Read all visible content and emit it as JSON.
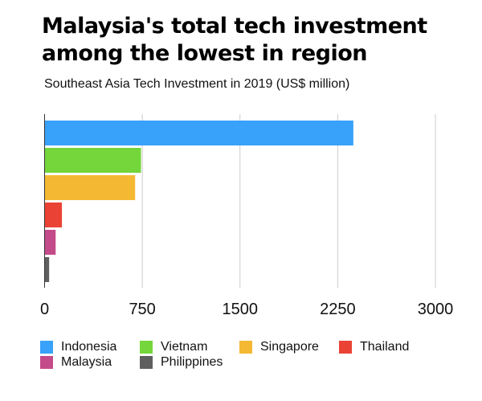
{
  "chart_data": {
    "type": "bar",
    "orientation": "horizontal",
    "title": "Malaysia's total tech investment among the lowest in region",
    "subtitle": "Southeast Asia Tech Investment in 2019 (US$ million)",
    "categories": [
      "Indonesia",
      "Vietnam",
      "Singapore",
      "Thailand",
      "Malaysia",
      "Philippines"
    ],
    "values": [
      2370,
      740,
      695,
      133,
      85,
      35
    ],
    "colors": [
      "#38a1f9",
      "#74d63a",
      "#f5b833",
      "#ea4335",
      "#c44b8a",
      "#5f5f5f"
    ],
    "xlim": [
      0,
      3000
    ],
    "xticks": [
      "0",
      "750",
      "1500",
      "2250",
      "3000"
    ],
    "grid": true,
    "legend": "bottom"
  }
}
